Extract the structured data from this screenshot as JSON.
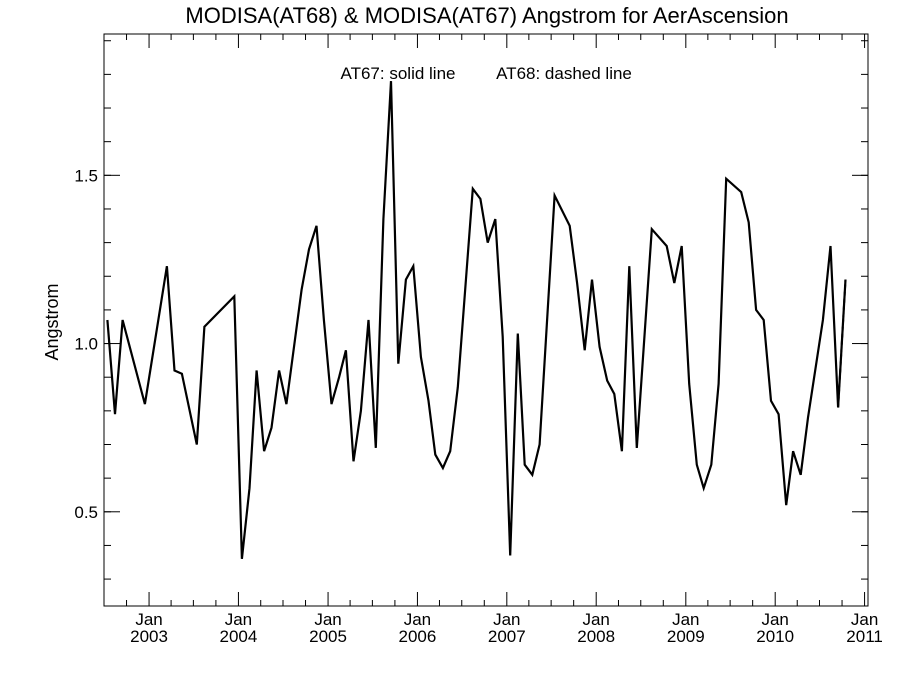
{
  "chart_data": {
    "type": "line",
    "title": "MODISA(AT68) & MODISA(AT67)  Angstrom for AerAscension",
    "annotation": [
      "AT67: solid line",
      "AT68: dashed line"
    ],
    "xlabel": "",
    "ylabel": "Angstrom",
    "xlim": [
      "2002-07-01",
      "2011-01-15"
    ],
    "ylim": [
      0.22,
      1.92
    ],
    "yticks": [
      0.5,
      1.0,
      1.5
    ],
    "ytick_labels": [
      "0.5",
      "1.0",
      "1.5"
    ],
    "yminor_step": 0.1,
    "xticks": [
      {
        "date": "2003-01-01",
        "month": "Jan",
        "year": "2003"
      },
      {
        "date": "2004-01-01",
        "month": "Jan",
        "year": "2004"
      },
      {
        "date": "2005-01-01",
        "month": "Jan",
        "year": "2005"
      },
      {
        "date": "2006-01-01",
        "month": "Jan",
        "year": "2006"
      },
      {
        "date": "2007-01-01",
        "month": "Jan",
        "year": "2007"
      },
      {
        "date": "2008-01-01",
        "month": "Jan",
        "year": "2008"
      },
      {
        "date": "2009-01-01",
        "month": "Jan",
        "year": "2009"
      },
      {
        "date": "2010-01-01",
        "month": "Jan",
        "year": "2010"
      },
      {
        "date": "2011-01-01",
        "month": "Jan",
        "year": "2011"
      }
    ],
    "grid": false,
    "series": [
      {
        "name": "AT67",
        "style": "solid",
        "color": "#000000",
        "points": [
          [
            "2002-07-15",
            1.07
          ],
          [
            "2002-08-15",
            0.79
          ],
          [
            "2002-09-15",
            1.07
          ],
          [
            "2002-12-15",
            0.82
          ],
          [
            "2003-03-15",
            1.23
          ],
          [
            "2003-04-15",
            0.92
          ],
          [
            "2003-05-15",
            0.91
          ],
          [
            "2003-07-15",
            0.7
          ],
          [
            "2003-08-15",
            1.05
          ],
          [
            "2003-12-15",
            1.14
          ],
          [
            "2004-01-15",
            0.36
          ],
          [
            "2004-02-15",
            0.57
          ],
          [
            "2004-03-15",
            0.92
          ],
          [
            "2004-04-15",
            0.68
          ],
          [
            "2004-05-15",
            0.75
          ],
          [
            "2004-06-15",
            0.92
          ],
          [
            "2004-07-15",
            0.82
          ],
          [
            "2004-09-15",
            1.16
          ],
          [
            "2004-10-15",
            1.28
          ],
          [
            "2004-11-15",
            1.35
          ],
          [
            "2004-12-15",
            1.07
          ],
          [
            "2005-01-15",
            0.82
          ],
          [
            "2005-02-15",
            0.9
          ],
          [
            "2005-03-15",
            0.98
          ],
          [
            "2005-04-15",
            0.65
          ],
          [
            "2005-05-15",
            0.8
          ],
          [
            "2005-06-15",
            1.07
          ],
          [
            "2005-07-15",
            0.69
          ],
          [
            "2005-08-15",
            1.37
          ],
          [
            "2005-09-15",
            1.78
          ],
          [
            "2005-10-15",
            0.94
          ],
          [
            "2005-11-15",
            1.19
          ],
          [
            "2005-12-15",
            1.23
          ],
          [
            "2006-01-15",
            0.96
          ],
          [
            "2006-02-15",
            0.83
          ],
          [
            "2006-03-15",
            0.67
          ],
          [
            "2006-04-15",
            0.63
          ],
          [
            "2006-05-15",
            0.68
          ],
          [
            "2006-06-15",
            0.87
          ],
          [
            "2006-08-15",
            1.46
          ],
          [
            "2006-09-15",
            1.43
          ],
          [
            "2006-10-15",
            1.3
          ],
          [
            "2006-11-15",
            1.37
          ],
          [
            "2006-12-15",
            1.02
          ],
          [
            "2007-01-15",
            0.37
          ],
          [
            "2007-02-15",
            1.03
          ],
          [
            "2007-03-15",
            0.64
          ],
          [
            "2007-04-15",
            0.61
          ],
          [
            "2007-05-15",
            0.7
          ],
          [
            "2007-07-15",
            1.44
          ],
          [
            "2007-09-15",
            1.35
          ],
          [
            "2007-10-15",
            1.18
          ],
          [
            "2007-11-15",
            0.98
          ],
          [
            "2007-12-15",
            1.19
          ],
          [
            "2008-01-15",
            0.99
          ],
          [
            "2008-02-15",
            0.89
          ],
          [
            "2008-03-15",
            0.85
          ],
          [
            "2008-04-15",
            0.68
          ],
          [
            "2008-05-15",
            1.23
          ],
          [
            "2008-06-15",
            0.69
          ],
          [
            "2008-08-15",
            1.34
          ],
          [
            "2008-10-15",
            1.29
          ],
          [
            "2008-11-15",
            1.18
          ],
          [
            "2008-12-15",
            1.29
          ],
          [
            "2009-01-15",
            0.88
          ],
          [
            "2009-02-15",
            0.64
          ],
          [
            "2009-03-15",
            0.57
          ],
          [
            "2009-04-15",
            0.64
          ],
          [
            "2009-05-15",
            0.88
          ],
          [
            "2009-06-15",
            1.49
          ],
          [
            "2009-08-15",
            1.45
          ],
          [
            "2009-09-15",
            1.36
          ],
          [
            "2009-10-15",
            1.1
          ],
          [
            "2009-11-15",
            1.07
          ],
          [
            "2009-12-15",
            0.83
          ],
          [
            "2010-01-15",
            0.79
          ],
          [
            "2010-02-15",
            0.52
          ],
          [
            "2010-03-15",
            0.68
          ],
          [
            "2010-04-15",
            0.61
          ],
          [
            "2010-05-15",
            0.78
          ],
          [
            "2010-07-15",
            1.07
          ],
          [
            "2010-08-15",
            1.29
          ],
          [
            "2010-09-15",
            0.81
          ],
          [
            "2010-10-15",
            1.19
          ]
        ]
      },
      {
        "name": "AT68",
        "style": "dashed",
        "color": "#000000",
        "points": [
          [
            "2010-09-15",
            0.81
          ],
          [
            "2010-10-15",
            1.19
          ]
        ]
      }
    ]
  }
}
